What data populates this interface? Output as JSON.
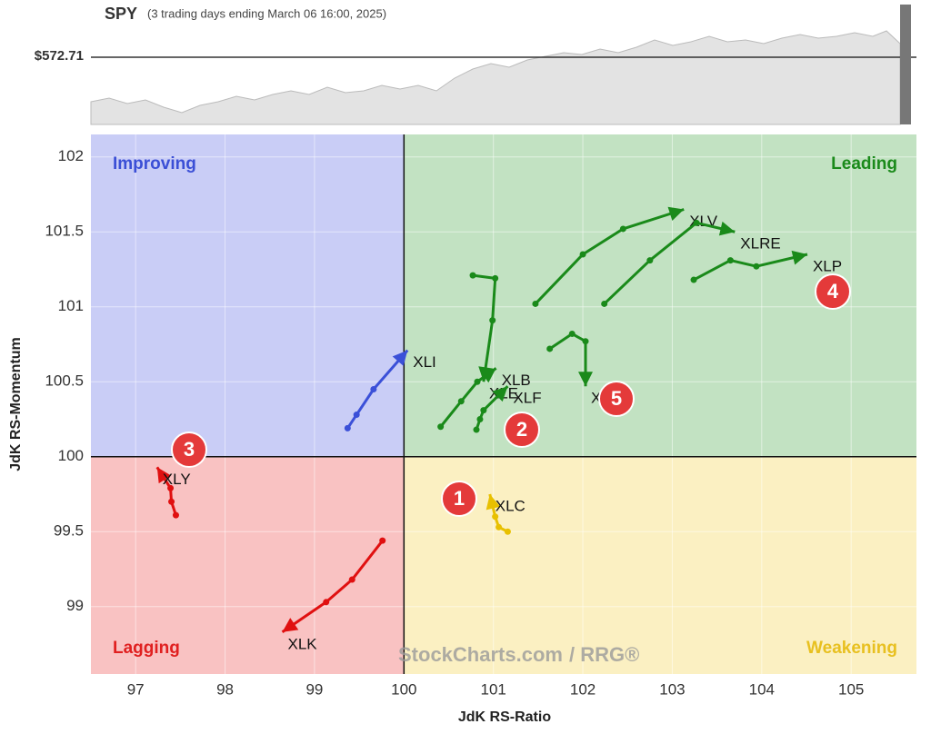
{
  "header": {
    "symbol": "SPY",
    "subtitle": "(3 trading days ending March 06 16:00, 2025)",
    "price_label": "$572.71"
  },
  "chart_data": {
    "type": "rrg",
    "xlabel": "JdK RS-Ratio",
    "ylabel": "JdK RS-Momentum",
    "xlim": [
      96.5,
      105.73
    ],
    "ylim": [
      98.55,
      102.15
    ],
    "xticks": [
      97,
      98,
      99,
      100,
      101,
      102,
      103,
      104,
      105
    ],
    "yticks": [
      99,
      {
        "value": 99.5,
        "label": "99.5"
      },
      100,
      {
        "value": 100.5,
        "label": "100.5"
      },
      101,
      {
        "value": 101.5,
        "label": "101.5"
      },
      102
    ],
    "center": [
      100,
      100
    ],
    "quadrants": {
      "improving": "Improving",
      "leading": "Leading",
      "lagging": "Lagging",
      "weakening": "Weakening"
    },
    "watermark": "StockCharts.com",
    "watermark_suffix": "/ RRG®",
    "annotations": [
      "1",
      "2",
      "3",
      "4",
      "5"
    ],
    "series": [
      {
        "name": "XLI",
        "color": "#3b50d8",
        "x": [
          99.37,
          99.47,
          99.66,
          100.04
        ],
        "y": [
          100.19,
          100.28,
          100.45,
          100.71
        ]
      },
      {
        "name": "XLY",
        "color": "#e01010",
        "x": [
          97.45,
          97.4,
          97.39,
          97.24
        ],
        "y": [
          99.61,
          99.7,
          99.79,
          99.93
        ]
      },
      {
        "name": "XLK",
        "color": "#e01010",
        "x": [
          99.76,
          99.42,
          99.13,
          98.64
        ],
        "y": [
          99.44,
          99.18,
          99.03,
          98.83
        ]
      },
      {
        "name": "XLC",
        "color": "#e8c000",
        "x": [
          101.16,
          101.06,
          101.02,
          100.96
        ],
        "y": [
          99.5,
          99.53,
          99.6,
          99.75
        ]
      },
      {
        "name": "XLE",
        "color": "#1a8a1a",
        "x": [
          100.77,
          101.02,
          100.99,
          100.89
        ],
        "y": [
          101.21,
          101.19,
          100.91,
          100.5
        ]
      },
      {
        "name": "XLB",
        "color": "#1a8a1a",
        "x": [
          100.41,
          100.64,
          100.82,
          101.03
        ],
        "y": [
          100.2,
          100.37,
          100.5,
          100.59
        ]
      },
      {
        "name": "XLF",
        "color": "#1a8a1a",
        "x": [
          100.81,
          100.85,
          100.89,
          101.16
        ],
        "y": [
          100.18,
          100.25,
          100.31,
          100.47
        ]
      },
      {
        "name": "XLU",
        "color": "#1a8a1a",
        "x": [
          101.63,
          101.88,
          102.03,
          102.03
        ],
        "y": [
          100.72,
          100.82,
          100.77,
          100.47
        ]
      },
      {
        "name": "XLV",
        "color": "#1a8a1a",
        "x": [
          101.47,
          102.0,
          102.45,
          103.13
        ],
        "y": [
          101.02,
          101.35,
          101.52,
          101.65
        ]
      },
      {
        "name": "XLRE",
        "color": "#1a8a1a",
        "x": [
          102.24,
          102.75,
          103.27,
          103.7
        ],
        "y": [
          101.02,
          101.31,
          101.56,
          101.5
        ]
      },
      {
        "name": "XLP",
        "color": "#1a8a1a",
        "x": [
          103.24,
          103.65,
          103.94,
          104.51
        ],
        "y": [
          101.18,
          101.31,
          101.27,
          101.35
        ]
      }
    ]
  }
}
